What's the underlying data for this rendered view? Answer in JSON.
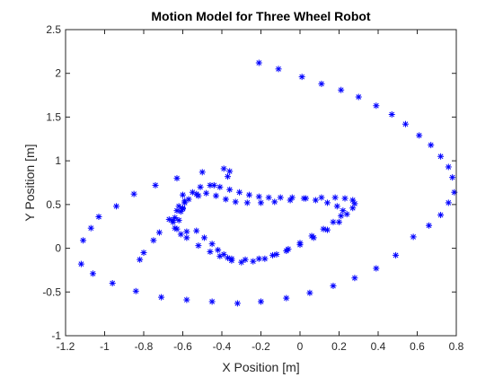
{
  "chart_data": {
    "type": "scatter",
    "title": "Motion Model for Three Wheel Robot",
    "xlabel": "X Position [m]",
    "ylabel": "Y Position [m]",
    "xlim": [
      -1.2,
      0.8
    ],
    "ylim": [
      -1,
      2.5
    ],
    "xticks": [
      "-1.2",
      "-1",
      "-0.8",
      "-0.6",
      "-0.4",
      "-0.2",
      "0",
      "0.2",
      "0.4",
      "0.6",
      "0.8"
    ],
    "yticks": [
      "-1",
      "-0.5",
      "0",
      "0.5",
      "1",
      "1.5",
      "2",
      "2.5"
    ],
    "grid": false,
    "marker": "asterisk",
    "colors": {
      "marker": "#0000ff",
      "axes": "#262626"
    },
    "series": [
      {
        "x": [
          -0.21,
          -0.11,
          0.01,
          0.11,
          0.21,
          0.3,
          0.39,
          0.47,
          0.54,
          0.61,
          0.67,
          0.72,
          0.76,
          0.78,
          0.79,
          0.76,
          0.72,
          0.66,
          0.58,
          0.49,
          0.39,
          0.28,
          0.17,
          0.05,
          -0.07,
          -0.2,
          -0.32,
          -0.45,
          -0.58,
          -0.71,
          -0.84,
          -0.96,
          -1.06,
          -1.12,
          -1.11,
          -1.07,
          -1.03,
          -0.94,
          -0.85,
          -0.74,
          -0.63,
          -0.5,
          -0.39,
          -0.36,
          -0.37,
          -0.44,
          -0.52,
          -0.6,
          -0.67,
          -0.72,
          -0.75,
          -0.8,
          -0.82
        ],
        "y": [
          2.12,
          2.05,
          1.96,
          1.88,
          1.81,
          1.73,
          1.63,
          1.53,
          1.42,
          1.29,
          1.18,
          1.05,
          0.93,
          0.81,
          0.64,
          0.52,
          0.38,
          0.26,
          0.13,
          -0.08,
          -0.23,
          -0.34,
          -0.43,
          -0.51,
          -0.57,
          -0.61,
          -0.63,
          -0.61,
          -0.59,
          -0.56,
          -0.49,
          -0.4,
          -0.29,
          -0.18,
          0.09,
          0.23,
          0.36,
          0.48,
          0.62,
          0.72,
          0.8,
          0.87,
          0.91,
          0.88,
          0.82,
          0.72,
          0.6,
          0.46,
          0.33,
          0.18,
          0.09,
          -0.05,
          -0.13
        ]
      },
      {
        "x": [
          -0.65,
          -0.61,
          -0.59,
          -0.6,
          -0.62,
          -0.64,
          -0.63,
          -0.58,
          -0.52,
          -0.46,
          -0.41,
          -0.35,
          -0.28,
          -0.21,
          -0.14,
          -0.07,
          0.0,
          0.07,
          0.14,
          0.2,
          0.24,
          0.27,
          0.28,
          0.27,
          0.23,
          0.18,
          0.11,
          0.03,
          -0.05,
          -0.13,
          -0.2,
          -0.27,
          -0.33,
          -0.38,
          -0.43,
          -0.48,
          -0.53,
          -0.57,
          -0.6,
          -0.62
        ],
        "y": [
          0.3,
          0.42,
          0.52,
          0.61,
          0.48,
          0.35,
          0.22,
          0.12,
          0.03,
          -0.04,
          -0.09,
          -0.12,
          -0.13,
          -0.12,
          -0.08,
          -0.03,
          0.04,
          0.12,
          0.21,
          0.3,
          0.39,
          0.46,
          0.51,
          0.55,
          0.57,
          0.58,
          0.58,
          0.57,
          0.55,
          0.53,
          0.52,
          0.52,
          0.53,
          0.56,
          0.6,
          0.63,
          0.62,
          0.56,
          0.45,
          0.32
        ]
      },
      {
        "x": [
          -0.58,
          -0.53,
          -0.49,
          -0.45,
          -0.42,
          -0.39,
          -0.37,
          -0.35,
          -0.3,
          -0.24,
          -0.18,
          -0.12,
          -0.06,
          0.0,
          0.06,
          0.12,
          0.17,
          0.21,
          0.22,
          0.19,
          0.14,
          0.08,
          0.02,
          -0.04,
          -0.1,
          -0.16,
          -0.21,
          -0.26,
          -0.31,
          -0.36,
          -0.41,
          -0.46,
          -0.51,
          -0.55,
          -0.59,
          -0.63,
          -0.65,
          -0.64,
          -0.61
        ],
        "y": [
          0.19,
          0.2,
          0.12,
          0.05,
          -0.02,
          -0.07,
          -0.11,
          -0.14,
          -0.16,
          -0.15,
          -0.12,
          -0.07,
          -0.01,
          0.06,
          0.14,
          0.22,
          0.3,
          0.37,
          0.43,
          0.48,
          0.52,
          0.55,
          0.57,
          0.58,
          0.58,
          0.58,
          0.59,
          0.61,
          0.64,
          0.67,
          0.7,
          0.72,
          0.7,
          0.64,
          0.54,
          0.43,
          0.32,
          0.23,
          0.16
        ]
      }
    ]
  }
}
